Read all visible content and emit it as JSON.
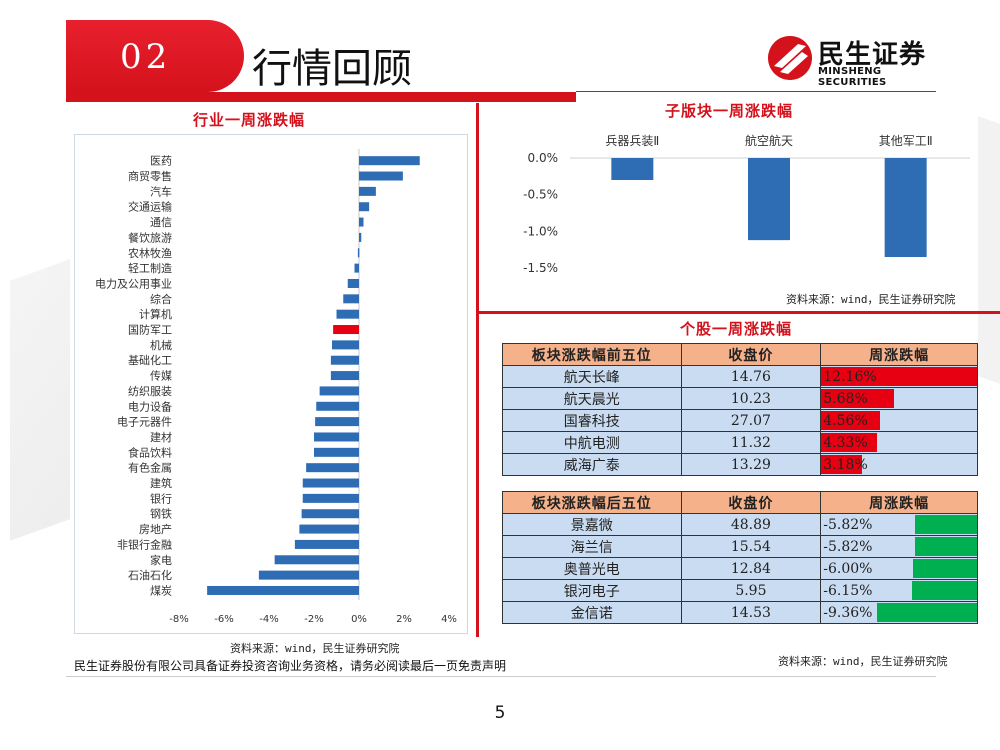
{
  "header": {
    "number": "02",
    "title": "行情回顾"
  },
  "logo": {
    "cn": "民生证券",
    "en": "MINSHENG SECURITIES"
  },
  "colors": {
    "brand_red": "#d4121c",
    "bar_blue": "#2e6db4",
    "highlight_red": "#e60012",
    "up_red": "#e60012",
    "down_green": "#00b050",
    "table_header": "#f5b18a",
    "table_cell": "#c9dcf1"
  },
  "industry": {
    "title": "行业一周涨跌幅",
    "source": "资料来源：wind，民生证券研究院"
  },
  "subsector": {
    "title": "子版块一周涨跌幅",
    "source": "资料来源：wind，民生证券研究院"
  },
  "stocks": {
    "title": "个股一周涨跌幅",
    "source": "资料来源：wind，民生证券研究院",
    "top": {
      "headers": [
        "板块涨跌幅前五位",
        "收盘价",
        "周涨跌幅"
      ],
      "rows": [
        {
          "name": "航天长峰",
          "price": "14.76",
          "change": "12.16%",
          "pct": 12.16
        },
        {
          "name": "航天晨光",
          "price": "10.23",
          "change": "5.68%",
          "pct": 5.68
        },
        {
          "name": "国睿科技",
          "price": "27.07",
          "change": "4.56%",
          "pct": 4.56
        },
        {
          "name": "中航电测",
          "price": "11.32",
          "change": "4.33%",
          "pct": 4.33
        },
        {
          "name": "威海广泰",
          "price": "13.29",
          "change": "3.18%",
          "pct": 3.18
        }
      ]
    },
    "bottom": {
      "headers": [
        "板块涨跌幅后五位",
        "收盘价",
        "周涨跌幅"
      ],
      "rows": [
        {
          "name": "景嘉微",
          "price": "48.89",
          "change": "-5.82%",
          "pct": -5.82
        },
        {
          "name": "海兰信",
          "price": "15.54",
          "change": "-5.82%",
          "pct": -5.82
        },
        {
          "name": "奥普光电",
          "price": "12.84",
          "change": "-6.00%",
          "pct": -6.0
        },
        {
          "name": "银河电子",
          "price": "5.95",
          "change": "-6.15%",
          "pct": -6.15
        },
        {
          "name": "金信诺",
          "price": "14.53",
          "change": "-9.36%",
          "pct": -9.36
        }
      ]
    }
  },
  "footer": {
    "disclaimer": "民生证券股份有限公司具备证券投资咨询业务资格，请务必阅读最后一页免责声明",
    "page": "5"
  },
  "chart_data": [
    {
      "type": "bar",
      "orientation": "horizontal",
      "title": "行业一周涨跌幅",
      "categories": [
        "医药",
        "商贸零售",
        "汽车",
        "交通运输",
        "通信",
        "餐饮旅游",
        "农林牧渔",
        "轻工制造",
        "电力及公用事业",
        "综合",
        "计算机",
        "国防军工",
        "机械",
        "基础化工",
        "传媒",
        "纺织服装",
        "电力设备",
        "电子元器件",
        "建材",
        "食品饮料",
        "有色金属",
        "建筑",
        "银行",
        "钢铁",
        "房地产",
        "非银行金融",
        "家电",
        "石油石化",
        "煤炭"
      ],
      "values": [
        2.7,
        1.95,
        0.75,
        0.45,
        0.2,
        0.1,
        -0.05,
        -0.2,
        -0.5,
        -0.7,
        -1.0,
        -1.15,
        -1.2,
        -1.25,
        -1.25,
        -1.75,
        -1.9,
        -1.95,
        -2.0,
        -2.0,
        -2.35,
        -2.5,
        -2.5,
        -2.55,
        -2.65,
        -2.85,
        -3.75,
        -4.45,
        -6.75
      ],
      "highlight": "国防军工",
      "xlim": [
        -8,
        4
      ],
      "xticks": [
        "-8%",
        "-6%",
        "-4%",
        "-2%",
        "0%",
        "2%",
        "4%"
      ],
      "xtick_values": [
        -8,
        -6,
        -4,
        -2,
        0,
        2,
        4
      ]
    },
    {
      "type": "bar",
      "title": "子版块一周涨跌幅",
      "categories": [
        "兵器兵装Ⅱ",
        "航空航天",
        "其他军工Ⅱ"
      ],
      "values": [
        -0.3,
        -1.12,
        -1.35
      ],
      "ylim": [
        -1.5,
        0.0
      ],
      "yticks": [
        "0.0%",
        "-0.5%",
        "-1.0%",
        "-1.5%"
      ],
      "ytick_values": [
        0.0,
        -0.5,
        -1.0,
        -1.5
      ]
    }
  ]
}
